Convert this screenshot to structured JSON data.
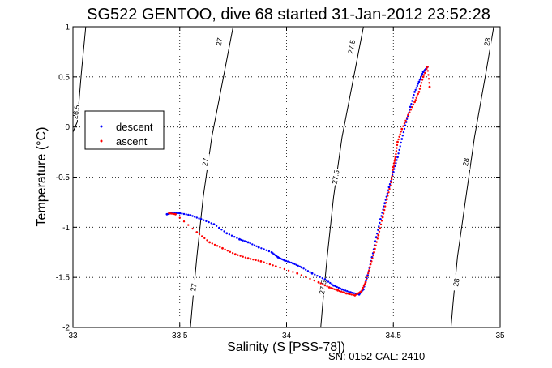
{
  "chart_data": {
    "type": "scatter",
    "title": "SG522 GENTOO, dive 68 started 31-Jan-2012 23:52:28",
    "xlabel": "Salinity (S [PSS-78])",
    "ylabel": "Temperature (°C)",
    "xlim": [
      33,
      35
    ],
    "ylim": [
      -2,
      1
    ],
    "x_ticks": [
      "33",
      "33.5",
      "34",
      "34.5",
      "35"
    ],
    "y_ticks": [
      "-2",
      "-1.5",
      "-1",
      "-0.5",
      "0",
      "0.5",
      "1"
    ],
    "grid": true,
    "legend": {
      "position": "upper-left"
    },
    "footer": "SN: 0152  CAL: 2410",
    "colors": {
      "descent": "#0000ff",
      "ascent": "#ff0000",
      "contour": "#000000"
    },
    "contours": [
      {
        "label": "26.5",
        "points": [
          [
            33.06,
            1.0
          ],
          [
            33.04,
            0.55
          ],
          [
            33.02,
            0.05
          ],
          [
            33.0,
            -0.05
          ]
        ],
        "labels_at": [
          [
            33.015,
            0.15
          ]
        ]
      },
      {
        "label": "27",
        "points": [
          [
            33.75,
            1.0
          ],
          [
            33.7,
            0.45
          ],
          [
            33.65,
            -0.1
          ],
          [
            33.61,
            -0.7
          ],
          [
            33.58,
            -1.3
          ],
          [
            33.56,
            -1.75
          ],
          [
            33.55,
            -2.0
          ]
        ],
        "labels_at": [
          [
            33.685,
            0.85
          ],
          [
            33.62,
            -0.35
          ],
          [
            33.565,
            -1.6
          ]
        ]
      },
      {
        "label": "27.5",
        "points": [
          [
            34.36,
            1.0
          ],
          [
            34.31,
            0.45
          ],
          [
            34.26,
            -0.1
          ],
          [
            34.22,
            -0.7
          ],
          [
            34.19,
            -1.3
          ],
          [
            34.17,
            -1.75
          ],
          [
            34.16,
            -2.0
          ]
        ],
        "labels_at": [
          [
            34.305,
            0.8
          ],
          [
            34.23,
            -0.5
          ],
          [
            34.17,
            -1.6
          ]
        ]
      },
      {
        "label": "28",
        "points": [
          [
            34.97,
            1.0
          ],
          [
            34.93,
            0.5
          ],
          [
            34.88,
            -0.1
          ],
          [
            34.84,
            -0.7
          ],
          [
            34.8,
            -1.3
          ],
          [
            34.78,
            -1.75
          ],
          [
            34.77,
            -2.0
          ]
        ],
        "labels_at": [
          [
            34.94,
            0.85
          ],
          [
            34.84,
            -0.35
          ],
          [
            34.795,
            -1.55
          ]
        ]
      }
    ],
    "series": [
      {
        "name": "descent",
        "points": [
          [
            33.44,
            -0.87
          ],
          [
            33.46,
            -0.86
          ],
          [
            33.5,
            -0.86
          ],
          [
            33.55,
            -0.88
          ],
          [
            33.6,
            -0.92
          ],
          [
            33.66,
            -0.97
          ],
          [
            33.72,
            -1.06
          ],
          [
            33.78,
            -1.12
          ],
          [
            33.82,
            -1.15
          ],
          [
            33.87,
            -1.2
          ],
          [
            33.93,
            -1.25
          ],
          [
            33.96,
            -1.3
          ],
          [
            33.99,
            -1.33
          ],
          [
            34.03,
            -1.36
          ],
          [
            34.07,
            -1.4
          ],
          [
            34.12,
            -1.46
          ],
          [
            34.18,
            -1.52
          ],
          [
            34.22,
            -1.58
          ],
          [
            34.26,
            -1.62
          ],
          [
            34.3,
            -1.65
          ],
          [
            34.34,
            -1.67
          ],
          [
            34.36,
            -1.62
          ],
          [
            34.38,
            -1.48
          ],
          [
            34.4,
            -1.3
          ],
          [
            34.42,
            -1.1
          ],
          [
            34.44,
            -0.92
          ],
          [
            34.46,
            -0.76
          ],
          [
            34.48,
            -0.6
          ],
          [
            34.5,
            -0.45
          ],
          [
            34.52,
            -0.3
          ],
          [
            34.54,
            -0.12
          ],
          [
            34.56,
            0.05
          ],
          [
            34.58,
            0.2
          ],
          [
            34.6,
            0.35
          ],
          [
            34.62,
            0.45
          ],
          [
            34.64,
            0.55
          ],
          [
            34.66,
            0.6
          ]
        ]
      },
      {
        "name": "ascent",
        "points": [
          [
            33.45,
            -0.86
          ],
          [
            33.48,
            -0.87
          ],
          [
            33.58,
            -1.05
          ],
          [
            33.64,
            -1.15
          ],
          [
            33.7,
            -1.21
          ],
          [
            33.76,
            -1.27
          ],
          [
            33.82,
            -1.31
          ],
          [
            33.88,
            -1.34
          ],
          [
            33.95,
            -1.39
          ],
          [
            34.05,
            -1.46
          ],
          [
            34.15,
            -1.55
          ],
          [
            34.2,
            -1.6
          ],
          [
            34.24,
            -1.63
          ],
          [
            34.28,
            -1.66
          ],
          [
            34.32,
            -1.68
          ],
          [
            34.35,
            -1.64
          ],
          [
            34.37,
            -1.55
          ],
          [
            34.39,
            -1.4
          ],
          [
            34.41,
            -1.25
          ],
          [
            34.43,
            -1.08
          ],
          [
            34.45,
            -0.9
          ],
          [
            34.47,
            -0.72
          ],
          [
            34.49,
            -0.55
          ],
          [
            34.5,
            -0.4
          ],
          [
            34.51,
            -0.3
          ],
          [
            34.52,
            -0.15
          ],
          [
            34.54,
            -0.02
          ],
          [
            34.57,
            0.12
          ],
          [
            34.6,
            0.25
          ],
          [
            34.62,
            0.35
          ],
          [
            34.64,
            0.5
          ],
          [
            34.66,
            0.6
          ],
          [
            34.67,
            0.4
          ]
        ]
      }
    ]
  }
}
